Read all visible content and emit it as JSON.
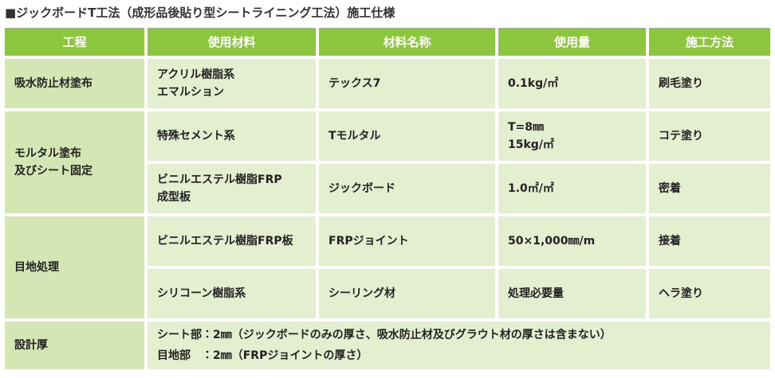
{
  "title": "■ジックボードT工法（成形品後貼り型シートライニング工法）施工仕様",
  "table": {
    "header": [
      "工程",
      "使用材料",
      "材料名称",
      "使用量",
      "施工方法"
    ],
    "rows": [
      [
        "吸水防止材塗布",
        "アクリル樹脂系\nエマルション",
        "テックス7",
        "0.1kg/㎡",
        "刷毛塗り"
      ],
      [
        "モルタル塗布\n及びシート固定",
        "特殊セメント系",
        "Tモルタル",
        "T=8㎜\n15kg/㎡",
        "コテ塗り"
      ],
      [
        "ビニルエステル樹脂FRP\n成型板",
        "ジックボード",
        "1.0㎡/㎡",
        "密着"
      ],
      [
        "目地処理",
        "ビニルエステル樹脂FRP板",
        "FRPジョイント",
        "50×1,000㎜/m",
        "接着"
      ],
      [
        "シリコーン樹脂系",
        "シーリング材",
        "処理必要量",
        "ヘラ塗り"
      ],
      [
        "設計厚",
        "シート部：2㎜（ジックボードのみの厚さ、吸水防止材及びグラウト材の厚さは含まない）\n目地部　：2㎜（FRPジョイントの厚さ）"
      ]
    ]
  }
}
